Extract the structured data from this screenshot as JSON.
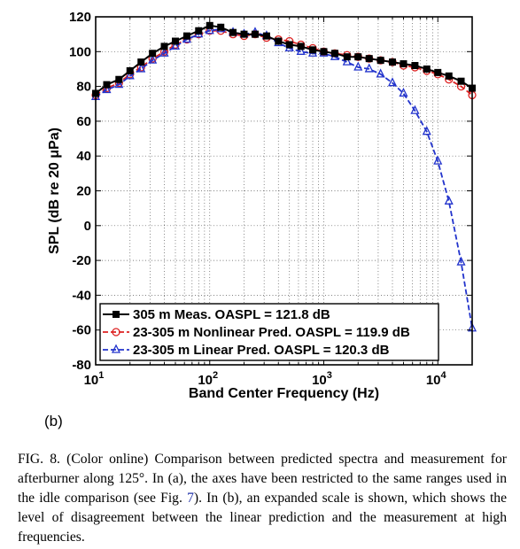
{
  "chart_data": {
    "type": "line",
    "xscale": "log",
    "xlim": [
      10,
      20000
    ],
    "ylim": [
      -80,
      120
    ],
    "xlabel": "Band Center Frequency (Hz)",
    "ylabel": "SPL (dB re 20 μPa)",
    "grid": true,
    "legend_position": "bottom-left",
    "x_ticks": [
      {
        "value": 10,
        "base": "10",
        "exp": "1"
      },
      {
        "value": 100,
        "base": "10",
        "exp": "2"
      },
      {
        "value": 1000,
        "base": "10",
        "exp": "3"
      },
      {
        "value": 10000,
        "base": "10",
        "exp": "4"
      }
    ],
    "y_ticks": [
      {
        "value": 120,
        "label": "120"
      },
      {
        "value": 100,
        "label": "100"
      },
      {
        "value": 80,
        "label": "80"
      },
      {
        "value": 60,
        "label": "60"
      },
      {
        "value": 40,
        "label": "40"
      },
      {
        "value": 20,
        "label": "20"
      },
      {
        "value": 0,
        "label": "0"
      },
      {
        "value": -20,
        "label": "-20"
      },
      {
        "value": -40,
        "label": "-40"
      },
      {
        "value": -60,
        "label": "-60"
      },
      {
        "value": -80,
        "label": "-80"
      }
    ],
    "x": [
      10,
      12.5,
      16,
      20,
      25,
      31.5,
      40,
      50,
      63,
      80,
      100,
      125,
      160,
      200,
      250,
      315,
      400,
      500,
      630,
      800,
      1000,
      1250,
      1600,
      2000,
      2500,
      3150,
      4000,
      5000,
      6300,
      8000,
      10000,
      12500,
      16000,
      20000
    ],
    "series": [
      {
        "name": "305 m Meas. OASPL = 121.8 dB",
        "color": "#000000",
        "line_style": "solid",
        "marker": "filled-square",
        "values": [
          76,
          81,
          84,
          89,
          94,
          99,
          103,
          106,
          109,
          112,
          115,
          114,
          111,
          110,
          110,
          109,
          106,
          104,
          103,
          101,
          100,
          99,
          97,
          97,
          96,
          95,
          94,
          93,
          92,
          90,
          88,
          86,
          83,
          79
        ]
      },
      {
        "name": "23-305 m Nonlinear Pred. OASPL = 119.9 dB",
        "color": "#dd2222",
        "line_style": "dashed",
        "marker": "open-circle",
        "values": [
          75,
          79,
          82,
          87,
          91,
          96,
          100,
          104,
          107,
          110,
          112,
          112,
          110,
          109,
          110,
          108,
          107,
          106,
          104,
          102,
          100,
          99,
          98,
          97,
          96,
          95,
          94,
          92,
          91,
          89,
          87,
          84,
          80,
          75
        ]
      },
      {
        "name": "23-305 m Linear Pred. OASPL = 120.3 dB",
        "color": "#2233cc",
        "line_style": "dashed",
        "marker": "open-triangle",
        "values": [
          74,
          78,
          81,
          86,
          90,
          95,
          99,
          103,
          107,
          110,
          112,
          113,
          111,
          110,
          111,
          109,
          105,
          102,
          100,
          99,
          99,
          97,
          94,
          91,
          90,
          87,
          82,
          76,
          66,
          54,
          37,
          14,
          -21,
          -59
        ]
      }
    ]
  },
  "panel_label": "(b)",
  "caption": {
    "lead": "FIG. 8. (Color online) Comparison between predicted spectra and measurement for afterburner along 125°. In (a), the axes have been restricted to the same ranges used in the idle comparison (see Fig. ",
    "ref": "7",
    "tail": "). In (b), an expanded scale is shown, which shows the level of disagreement between the linear prediction and the measurement at high frequencies."
  }
}
